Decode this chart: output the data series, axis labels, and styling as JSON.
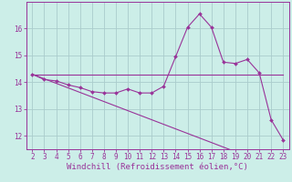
{
  "xlabel": "Windchill (Refroidissement éolien,°C)",
  "bg_color": "#cceee8",
  "grid_color": "#aacccc",
  "line_color": "#993399",
  "spine_color": "#993399",
  "x": [
    2,
    3,
    4,
    5,
    6,
    7,
    8,
    9,
    10,
    11,
    12,
    13,
    14,
    15,
    16,
    17,
    18,
    19,
    20,
    21,
    22,
    23
  ],
  "y_curve": [
    14.3,
    14.1,
    14.05,
    13.9,
    13.8,
    13.65,
    13.6,
    13.6,
    13.75,
    13.6,
    13.6,
    13.85,
    14.95,
    16.05,
    16.55,
    16.05,
    14.75,
    14.7,
    14.85,
    14.35,
    12.6,
    11.85
  ],
  "y_line1": [
    14.3,
    14.3,
    14.3,
    14.3,
    14.3,
    14.3,
    14.3,
    14.3,
    14.3,
    14.3,
    14.3,
    14.3,
    14.3,
    14.3,
    14.3,
    14.3,
    14.3,
    14.3,
    14.3,
    14.3,
    14.3,
    14.3
  ],
  "y_line2": [
    14.3,
    14.13,
    13.96,
    13.79,
    13.62,
    13.45,
    13.28,
    13.11,
    12.94,
    12.77,
    12.6,
    12.43,
    12.26,
    12.09,
    11.92,
    11.75,
    11.58,
    11.41,
    11.24,
    11.07,
    10.9,
    10.73
  ],
  "ylim": [
    11.5,
    17.0
  ],
  "xlim": [
    1.5,
    23.5
  ],
  "yticks": [
    12,
    13,
    14,
    15,
    16
  ],
  "xticks": [
    2,
    3,
    4,
    5,
    6,
    7,
    8,
    9,
    10,
    11,
    12,
    13,
    14,
    15,
    16,
    17,
    18,
    19,
    20,
    21,
    22,
    23
  ],
  "tick_fontsize": 5.5,
  "xlabel_fontsize": 6.5
}
